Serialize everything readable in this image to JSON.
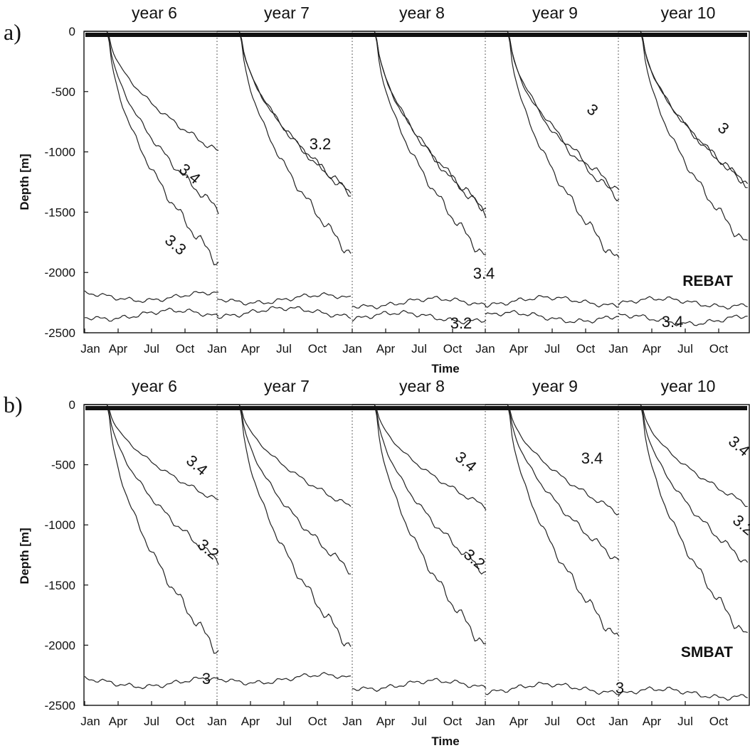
{
  "chart_data": [
    {
      "type": "contour",
      "panel_label": "a)",
      "model": "REBAT",
      "xlabel": "Time",
      "ylabel": "Depth [m]",
      "ylim": [
        -2500,
        0
      ],
      "yticks": [
        0,
        -500,
        -1000,
        -1500,
        -2000,
        -2500
      ],
      "year_labels": [
        "year 6",
        "year 7",
        "year 8",
        "year 9",
        "year 10"
      ],
      "month_ticks": [
        "Jan",
        "Apr",
        "Jul",
        "Oct"
      ],
      "year_boundary_lines": "dotted",
      "contour_labels": [
        "3.4",
        "3.3",
        "3.2",
        "3.4",
        "3.2",
        "3",
        "3.4",
        "3",
        "3.4"
      ],
      "contours_by_year": {
        "3.4": [
          -1000,
          -1350,
          -1500,
          -1380,
          -1300
        ],
        "3.3": [
          -1480,
          -1340,
          -1480,
          -1320,
          -1300
        ],
        "3.2": [
          -1920,
          -1850,
          -1880,
          -1920,
          -1820
        ],
        "3.1": [
          -2200,
          -2220,
          -2250,
          -2240,
          -2250
        ],
        "3.0": [
          -2350,
          -2330,
          -2370,
          -2370,
          -2390
        ]
      }
    },
    {
      "type": "contour",
      "panel_label": "b)",
      "model": "SMBAT",
      "xlabel": "Time",
      "ylabel": "Depth [m]",
      "ylim": [
        -2500,
        0
      ],
      "yticks": [
        0,
        -500,
        -1000,
        -1500,
        -2000,
        -2500
      ],
      "year_labels": [
        "year 6",
        "year 7",
        "year 8",
        "year 9",
        "year 10"
      ],
      "month_ticks": [
        "Jan",
        "Apr",
        "Jul",
        "Oct"
      ],
      "year_boundary_lines": "dotted",
      "contour_labels": [
        "3.4",
        "3.2",
        "3.4",
        "3.2",
        "3.4",
        "3.4",
        "3.2",
        "3",
        "3"
      ],
      "contours_by_year": {
        "3.4": [
          -800,
          -850,
          -850,
          -900,
          -850
        ],
        "3.3": [
          -1300,
          -1380,
          -1400,
          -1300,
          -1350
        ],
        "3.2": [
          -2050,
          -2020,
          -2020,
          -1970,
          -1990
        ],
        "3.0": [
          -2310,
          -2280,
          -2330,
          -2360,
          -2400
        ]
      }
    }
  ]
}
